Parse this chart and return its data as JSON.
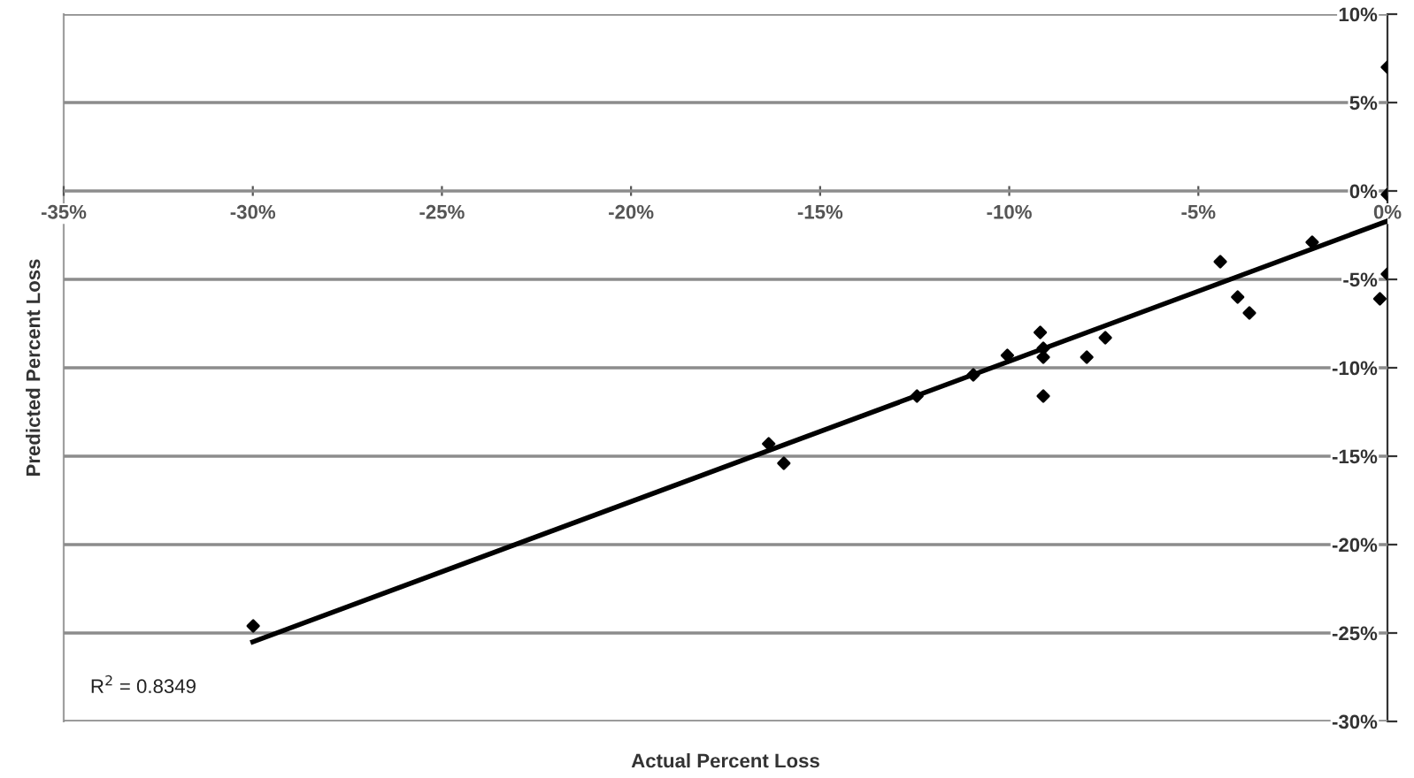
{
  "chart_data": {
    "type": "scatter",
    "xlabel": "Actual Percent Loss",
    "ylabel": "Predicted Percent Loss",
    "annotations": [
      "R$^{2}$ = 0.8349"
    ],
    "series": [
      {
        "color": "#000000",
        "marker": "diamond",
        "x": [
          0,
          0,
          0,
          -0.2,
          -1.99,
          -3.65,
          -3.96,
          -4.42,
          -7.46,
          -7.95,
          -9.18,
          -9.1,
          -9.1,
          -9.1,
          -10.05,
          -10.95,
          -12.44,
          -15.96,
          -16.36,
          -29.99
        ],
        "values": [
          7.0,
          -0.2,
          -4.7,
          -6.1,
          -2.9,
          -6.9,
          -6.0,
          -4.0,
          -8.3,
          -9.4,
          -8.0,
          -8.9,
          -9.4,
          -11.6,
          -9.3,
          -10.4,
          -11.6,
          -15.4,
          -14.3,
          -24.6
        ]
      },
      {
        "type": "line",
        "color": "#000000",
        "marker": "none",
        "x": [
          -30,
          0
        ],
        "values": [
          -25.5,
          -1.7
        ]
      }
    ],
    "xlim": [
      -35,
      0
    ],
    "ylim": [
      -30,
      10
    ],
    "xticks": [
      {
        "value": -35,
        "label": "-35%"
      },
      {
        "value": -30,
        "label": "-30%"
      },
      {
        "value": -25,
        "label": "-25%"
      },
      {
        "value": -20,
        "label": "-20%"
      },
      {
        "value": -15,
        "label": "-15%"
      },
      {
        "value": -10,
        "label": "-10%"
      },
      {
        "value": -5,
        "label": "-5%"
      },
      {
        "value": 0,
        "label": "0%"
      }
    ],
    "yticks": [
      {
        "value": 10,
        "label": "10%"
      },
      {
        "value": 5,
        "label": "5%"
      },
      {
        "value": 0,
        "label": "0%"
      },
      {
        "value": -5,
        "label": "-5%"
      },
      {
        "value": -10,
        "label": "-10%"
      },
      {
        "value": -15,
        "label": "-15%"
      },
      {
        "value": -20,
        "label": "-20%"
      },
      {
        "value": -25,
        "label": "-25%"
      },
      {
        "value": -30,
        "label": "-30%"
      }
    ],
    "grid": "y",
    "legend": false
  }
}
